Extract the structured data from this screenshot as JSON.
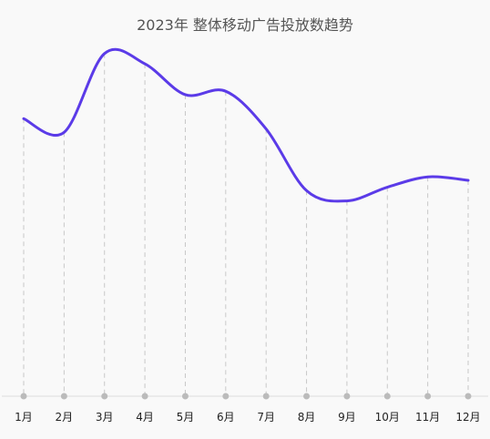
{
  "chart_data": {
    "type": "line",
    "title": "2023年 整体移动广告投放数趋势",
    "xlabel": "",
    "ylabel": "",
    "categories": [
      "1月",
      "2月",
      "3月",
      "4月",
      "5月",
      "6月",
      "7月",
      "8月",
      "9月",
      "10月",
      "11月",
      "12月"
    ],
    "series": [
      {
        "values": [
          81,
          77,
          100,
          97,
          88,
          89,
          78,
          60,
          57,
          61,
          64,
          63
        ],
        "color": "#5b3be8"
      }
    ],
    "ylim": [
      0,
      105
    ],
    "grid": false,
    "legend": "none",
    "drop_lines": true,
    "axis_marker_color": "#bbbbbb"
  }
}
